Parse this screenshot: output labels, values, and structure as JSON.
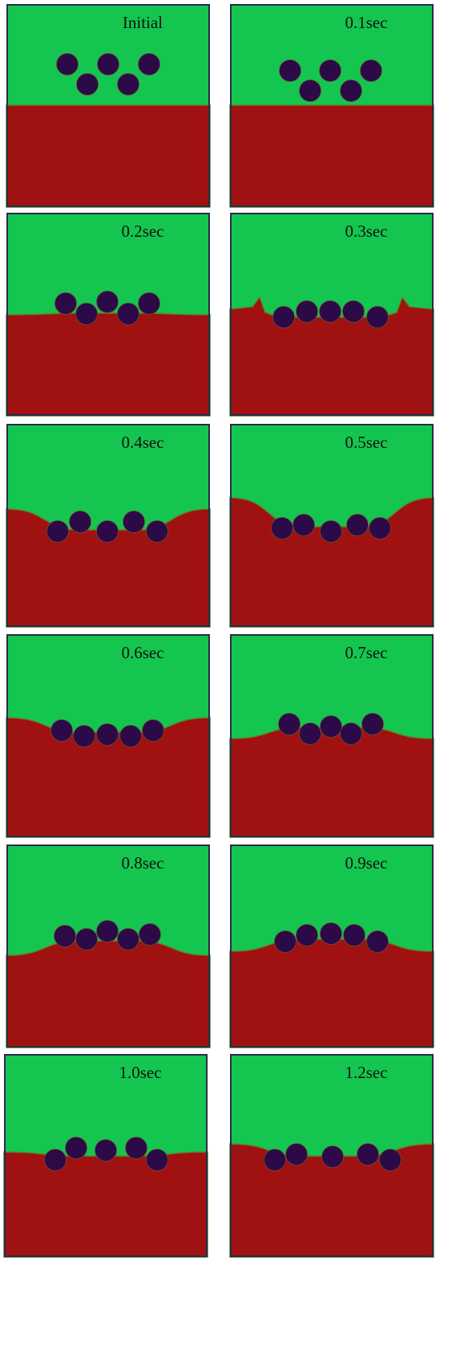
{
  "panels": [
    {
      "label": "Initial"
    },
    {
      "label": "0.1sec"
    },
    {
      "label": "0.2sec"
    },
    {
      "label": "0.3sec"
    },
    {
      "label": "0.4sec"
    },
    {
      "label": "0.5sec"
    },
    {
      "label": "0.6sec"
    },
    {
      "label": "0.7sec"
    },
    {
      "label": "0.8sec"
    },
    {
      "label": "0.9sec"
    },
    {
      "label": "1.0sec"
    },
    {
      "label": "1.2sec"
    }
  ]
}
